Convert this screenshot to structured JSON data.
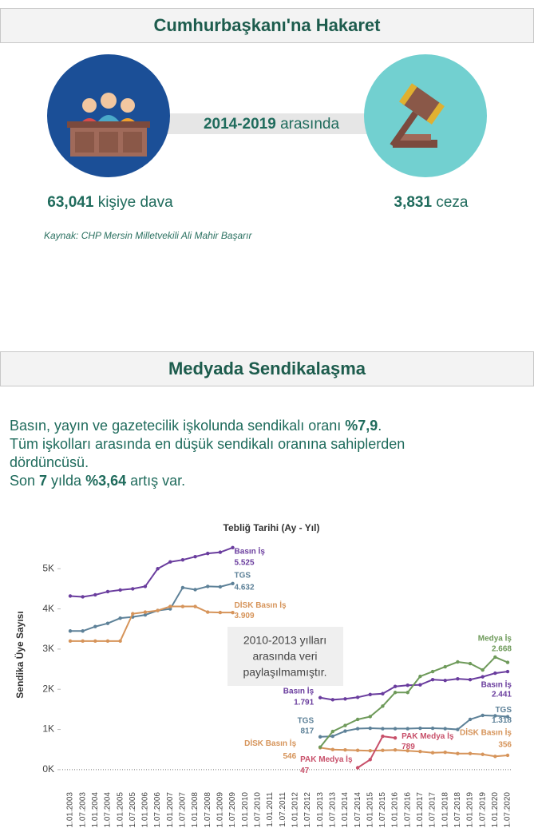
{
  "section1": {
    "title": "Cumhurbaşkanı'na Hakaret",
    "period": "2014-2019",
    "period_text": " arasında",
    "left_number": "63,041",
    "left_text": " kişiye dava",
    "right_number": "3,831",
    "right_text": " ceza",
    "source": "Kaynak: CHP Mersin Milletvekili Ali Mahir Başarır"
  },
  "section2": {
    "title": "Medyada Sendikalaşma",
    "paragraph": [
      [
        {
          "text": "Basın, yayın ve gazetecilik işkolunda sendikalı oranı ",
          "bold": false
        },
        {
          "text": "%7,9",
          "bold": true
        },
        {
          "text": ".",
          "bold": false
        }
      ],
      [
        {
          "text": "Tüm işkolları arasında en düşük sendikalı oranına sahiplerden dördüncüsü.",
          "bold": false
        }
      ],
      [
        {
          "text": "Son ",
          "bold": false
        },
        {
          "text": "7",
          "bold": true
        },
        {
          "text": " yılda ",
          "bold": false
        },
        {
          "text": "%3,64",
          "bold": true
        },
        {
          "text": " artış var.",
          "bold": false
        }
      ]
    ]
  },
  "chart_data": {
    "type": "line",
    "title": "Tebliğ Tarihi (Ay - Yıl)",
    "y_label": "Sendika Üye Sayısı",
    "annotation": [
      "2010-2013 yılları",
      "arasında veri",
      "paylaşılmamıştır."
    ],
    "categories": [
      "1.01.2003",
      "1.07.2003",
      "1.01.2004",
      "1.07.2004",
      "1.01.2005",
      "1.07.2005",
      "1.01.2006",
      "1.07.2006",
      "1.01.2007",
      "1.07.2007",
      "1.01.2008",
      "1.07.2008",
      "1.01.2009",
      "1.07.2009",
      "1.01.2010",
      "1.07.2010",
      "1.01.2011",
      "1.07.2011",
      "1.01.2012",
      "1.07.2012",
      "1.01.2013",
      "1.07.2013",
      "1.01.2014",
      "1.07.2014",
      "1.01.2015",
      "1.07.2015",
      "1.01.2016",
      "1.07.2016",
      "1.01.2017",
      "1.07.2017",
      "1.01.2018",
      "1.07.2018",
      "1.01.2019",
      "1.07.2019",
      "1.01.2020",
      "1.07.2020"
    ],
    "ylim": [
      -400,
      5800
    ],
    "yticks": [
      {
        "value": 0,
        "label": "0K"
      },
      {
        "value": 1000,
        "label": "1K"
      },
      {
        "value": 2000,
        "label": "2K"
      },
      {
        "value": 3000,
        "label": "3K"
      },
      {
        "value": 4000,
        "label": "4K"
      },
      {
        "value": 5000,
        "label": "5K"
      }
    ],
    "grid": false,
    "zero_line": true,
    "series": [
      {
        "name": "Basın İş",
        "color": "#6a3d9e",
        "values": [
          4320,
          4300,
          4350,
          4430,
          4470,
          4500,
          4560,
          5000,
          5170,
          5220,
          5300,
          5380,
          5410,
          5525,
          null,
          null,
          null,
          null,
          null,
          null,
          1791,
          1740,
          1760,
          1800,
          1870,
          1890,
          2070,
          2100,
          2110,
          2240,
          2220,
          2260,
          2240,
          2310,
          2400,
          2441
        ],
        "value_labels": [
          null,
          null,
          null,
          null,
          null,
          null,
          null,
          null,
          null,
          null,
          null,
          null,
          null,
          "5.525",
          null,
          null,
          null,
          null,
          null,
          null,
          "1.791",
          null,
          null,
          null,
          null,
          null,
          null,
          null,
          null,
          null,
          null,
          null,
          null,
          null,
          null,
          "2.441"
        ]
      },
      {
        "name": "TGS",
        "color": "#5d8198",
        "values": [
          3450,
          3450,
          3560,
          3640,
          3770,
          3800,
          3850,
          3960,
          4000,
          4530,
          4480,
          4560,
          4550,
          4632,
          null,
          null,
          null,
          null,
          null,
          null,
          817,
          830,
          960,
          1020,
          1030,
          1020,
          1020,
          1020,
          1030,
          1030,
          1020,
          1000,
          1250,
          1350,
          1340,
          1318
        ],
        "value_labels": [
          null,
          null,
          null,
          null,
          null,
          null,
          null,
          null,
          null,
          null,
          null,
          null,
          null,
          "4.632",
          null,
          null,
          null,
          null,
          null,
          null,
          "817",
          null,
          null,
          null,
          null,
          null,
          null,
          null,
          null,
          null,
          null,
          null,
          null,
          null,
          null,
          "1.318"
        ]
      },
      {
        "name": "DİSK Basın İş",
        "color": "#d6945a",
        "values": [
          3200,
          3200,
          3200,
          3200,
          3200,
          3880,
          3920,
          3960,
          4060,
          4060,
          4060,
          3920,
          3910,
          3909,
          null,
          null,
          null,
          null,
          null,
          null,
          546,
          500,
          490,
          480,
          470,
          480,
          490,
          470,
          450,
          420,
          430,
          400,
          400,
          380,
          330,
          356
        ],
        "value_labels": [
          null,
          null,
          null,
          null,
          null,
          null,
          null,
          null,
          null,
          null,
          null,
          null,
          null,
          "3.909",
          null,
          null,
          null,
          null,
          null,
          null,
          "546",
          null,
          null,
          null,
          null,
          null,
          null,
          null,
          null,
          null,
          null,
          null,
          null,
          null,
          null,
          "356"
        ]
      },
      {
        "name": "Medya İş",
        "color": "#6e9a5a",
        "values": [
          null,
          null,
          null,
          null,
          null,
          null,
          null,
          null,
          null,
          null,
          null,
          null,
          null,
          null,
          null,
          null,
          null,
          null,
          null,
          null,
          560,
          950,
          1100,
          1250,
          1320,
          1580,
          1920,
          1920,
          2320,
          2440,
          2560,
          2680,
          2640,
          2480,
          2800,
          2668
        ],
        "value_labels": [
          null,
          null,
          null,
          null,
          null,
          null,
          null,
          null,
          null,
          null,
          null,
          null,
          null,
          null,
          null,
          null,
          null,
          null,
          null,
          null,
          null,
          null,
          null,
          null,
          null,
          null,
          null,
          null,
          null,
          null,
          null,
          null,
          null,
          null,
          null,
          "2.668"
        ]
      },
      {
        "name": "PAK Medya İş",
        "color": "#c8506a",
        "values": [
          null,
          null,
          null,
          null,
          null,
          null,
          null,
          null,
          null,
          null,
          null,
          null,
          null,
          null,
          null,
          null,
          null,
          null,
          null,
          null,
          null,
          null,
          null,
          47,
          250,
          830,
          789,
          null,
          null,
          null,
          null,
          null,
          null,
          null,
          null,
          null
        ],
        "value_labels": [
          null,
          null,
          null,
          null,
          null,
          null,
          null,
          null,
          null,
          null,
          null,
          null,
          null,
          null,
          null,
          null,
          null,
          null,
          null,
          null,
          null,
          null,
          null,
          "47",
          null,
          null,
          "789",
          null,
          null,
          null,
          null,
          null,
          null,
          null,
          null,
          null
        ]
      }
    ]
  }
}
